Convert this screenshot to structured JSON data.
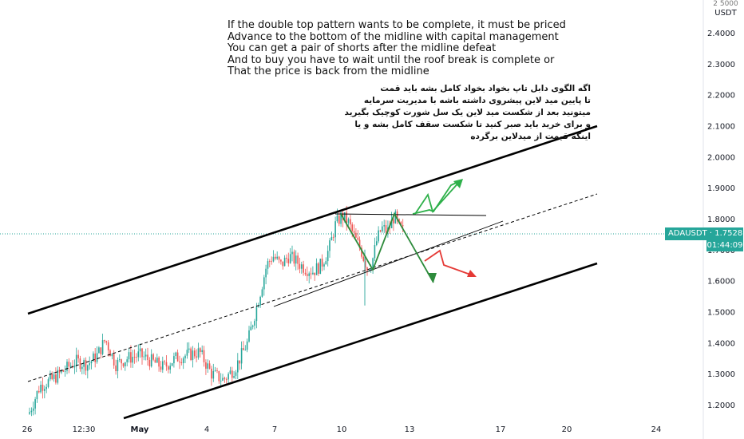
{
  "chart_data": {
    "type": "candlestick",
    "symbol": "ADAUSDT",
    "price_label": "ADAUSDT · 1.7528",
    "last_price": 1.7528,
    "countdown": "01:44:09",
    "currency_top": "2 5000",
    "currency": "USDT",
    "y_ticks": [
      "2.4000",
      "2.3000",
      "2.2000",
      "2.1000",
      "2.0000",
      "1.9000",
      "1.8000",
      "1.7000",
      "1.6000",
      "1.5000",
      "1.4000",
      "1.3000",
      "1.2000"
    ],
    "x_ticks": [
      "26",
      "12:30",
      "May",
      "4",
      "7",
      "10",
      "13",
      "17",
      "20",
      "24"
    ],
    "ylim": [
      1.15,
      2.46
    ],
    "colors": {
      "up": "#26a69a",
      "down": "#ef5350",
      "price_line": "#26a69a"
    }
  },
  "annotation_en": [
    "If the double top pattern wants to be complete, it must be priced",
    "Advance to the bottom of the midline with capital management",
    "You can get a pair of shorts after the midline defeat",
    "And to buy you have to wait until the roof break is complete or",
    "That the price is back from the midline"
  ],
  "annotation_fa": [
    "اگه الگوی دابل تاپ بخواد بخواد کامل بشه باید قمت",
    "تا پایین مید لاین پیشروی داشته باشه با مدیریت سرمایه",
    "میتونید بعد از شکست مید لاین یک سل شورت کوچیک بگیرید",
    "و برای خرید باید صبر کنید تا شکست سقف کامل بشه و یا",
    "اینکه قیمت از میدلاین برگرده"
  ]
}
